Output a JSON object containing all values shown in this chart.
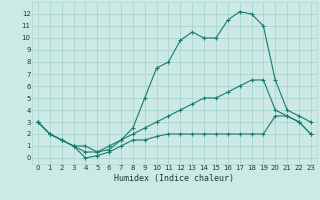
{
  "xlabel": "Humidex (Indice chaleur)",
  "background_color": "#cce9e5",
  "grid_color": "#b0d8d3",
  "line_color": "#1a7a6e",
  "xlim": [
    -0.5,
    23.5
  ],
  "ylim": [
    -0.5,
    13
  ],
  "xticks": [
    0,
    1,
    2,
    3,
    4,
    5,
    6,
    7,
    8,
    9,
    10,
    11,
    12,
    13,
    14,
    15,
    16,
    17,
    18,
    19,
    20,
    21,
    22,
    23
  ],
  "yticks": [
    0,
    1,
    2,
    3,
    4,
    5,
    6,
    7,
    8,
    9,
    10,
    11,
    12
  ],
  "series": [
    {
      "x": [
        0,
        1,
        2,
        3,
        4,
        5,
        6,
        7,
        8,
        9,
        10,
        11,
        12,
        13,
        14,
        15,
        16,
        17,
        18,
        19,
        20,
        21,
        22,
        23
      ],
      "y": [
        3,
        2,
        1.5,
        1,
        1,
        0.5,
        0.7,
        1.5,
        2.5,
        5,
        7.5,
        8,
        9.8,
        10.5,
        10,
        10,
        11.5,
        12.2,
        12,
        11,
        6.5,
        4,
        3.5,
        3
      ]
    },
    {
      "x": [
        0,
        1,
        2,
        3,
        4,
        5,
        6,
        7,
        8,
        9,
        10,
        11,
        12,
        13,
        14,
        15,
        16,
        17,
        18,
        19,
        20,
        21,
        22,
        23
      ],
      "y": [
        3,
        2,
        1.5,
        1,
        0.5,
        0.5,
        1,
        1.5,
        2,
        2.5,
        3,
        3.5,
        4,
        4.5,
        5,
        5,
        5.5,
        6,
        6.5,
        6.5,
        4,
        3.5,
        3,
        2
      ]
    },
    {
      "x": [
        0,
        1,
        2,
        3,
        4,
        5,
        6,
        7,
        8,
        9,
        10,
        11,
        12,
        13,
        14,
        15,
        16,
        17,
        18,
        19,
        20,
        21,
        22,
        23
      ],
      "y": [
        3,
        2,
        1.5,
        1,
        0,
        0.2,
        0.5,
        1,
        1.5,
        1.5,
        1.8,
        2,
        2,
        2,
        2,
        2,
        2,
        2,
        2,
        2,
        3.5,
        3.5,
        3,
        2
      ]
    }
  ]
}
